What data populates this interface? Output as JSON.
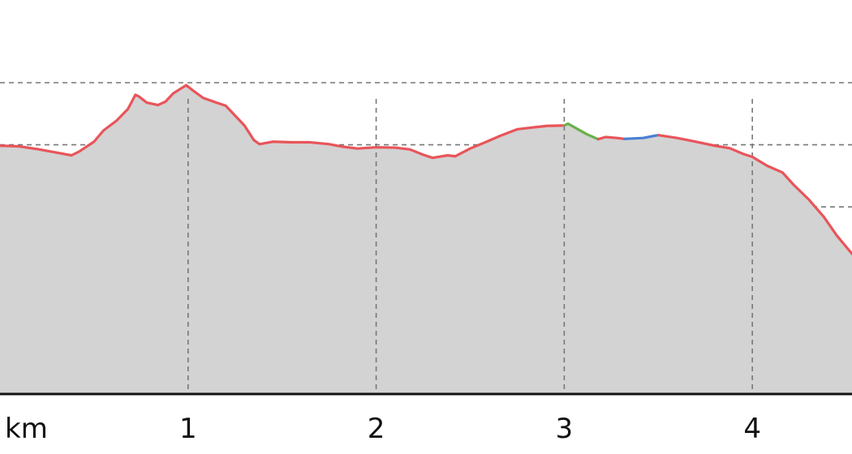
{
  "chart_data": {
    "type": "area",
    "title": "",
    "xlabel": "",
    "ylabel": "",
    "x_unit_label": "km",
    "x_ticks": [
      1,
      2,
      3,
      4
    ],
    "xlim": [
      0,
      4.53
    ],
    "ylim": [
      0,
      100
    ],
    "y_grid_levels": [
      20,
      40,
      60,
      80,
      100
    ],
    "grid": true,
    "colors": {
      "fill": "#d3d3d3",
      "line": "#e8555a",
      "grid": "#777777",
      "axis": "#111111",
      "segment_green": "#6ab04c",
      "segment_blue": "#4a7fd4"
    },
    "series": [
      {
        "color": "#e8555a",
        "points": [
          [
            0.0,
            79.7
          ],
          [
            0.1,
            79.5
          ],
          [
            0.2,
            78.6
          ],
          [
            0.3,
            77.5
          ],
          [
            0.38,
            76.6
          ],
          [
            0.42,
            77.8
          ],
          [
            0.5,
            81.0
          ],
          [
            0.55,
            84.6
          ],
          [
            0.62,
            87.8
          ],
          [
            0.68,
            91.5
          ],
          [
            0.72,
            96.1
          ],
          [
            0.74,
            95.5
          ],
          [
            0.78,
            93.6
          ],
          [
            0.84,
            92.8
          ],
          [
            0.88,
            93.9
          ],
          [
            0.92,
            96.5
          ],
          [
            0.99,
            99.2
          ],
          [
            1.03,
            97.3
          ],
          [
            1.08,
            95.1
          ],
          [
            1.15,
            93.6
          ],
          [
            1.2,
            92.6
          ],
          [
            1.25,
            89.4
          ],
          [
            1.3,
            86.2
          ],
          [
            1.35,
            81.5
          ],
          [
            1.38,
            80.2
          ],
          [
            1.45,
            81.0
          ],
          [
            1.55,
            80.8
          ],
          [
            1.65,
            80.8
          ],
          [
            1.75,
            80.2
          ],
          [
            1.82,
            79.4
          ],
          [
            1.9,
            78.8
          ],
          [
            2.0,
            79.2
          ],
          [
            2.1,
            79.1
          ],
          [
            2.18,
            78.5
          ],
          [
            2.25,
            76.8
          ],
          [
            2.3,
            75.8
          ],
          [
            2.38,
            76.6
          ],
          [
            2.42,
            76.3
          ],
          [
            2.5,
            78.8
          ],
          [
            2.58,
            80.8
          ],
          [
            2.66,
            82.9
          ],
          [
            2.75,
            85.0
          ],
          [
            2.85,
            85.7
          ],
          [
            2.91,
            86.1
          ],
          [
            2.98,
            86.2
          ],
          [
            3.0,
            86.2
          ]
        ]
      },
      {
        "color": "#6ab04c",
        "points": [
          [
            3.0,
            86.2
          ],
          [
            3.02,
            86.8
          ],
          [
            3.12,
            83.4
          ],
          [
            3.18,
            81.8
          ]
        ]
      },
      {
        "color": "#e8555a",
        "points": [
          [
            3.18,
            81.8
          ],
          [
            3.22,
            82.5
          ],
          [
            3.28,
            82.2
          ],
          [
            3.32,
            81.9
          ]
        ]
      },
      {
        "color": "#4a7fd4",
        "points": [
          [
            3.32,
            81.9
          ],
          [
            3.42,
            82.2
          ],
          [
            3.48,
            82.9
          ],
          [
            3.5,
            83.1
          ]
        ]
      },
      {
        "color": "#e8555a",
        "points": [
          [
            3.5,
            83.1
          ],
          [
            3.6,
            82.2
          ],
          [
            3.7,
            81.0
          ],
          [
            3.8,
            79.7
          ],
          [
            3.88,
            78.9
          ],
          [
            3.95,
            77.1
          ],
          [
            4.0,
            76.1
          ],
          [
            4.08,
            73.2
          ],
          [
            4.16,
            71.1
          ],
          [
            4.22,
            67.1
          ],
          [
            4.3,
            62.4
          ],
          [
            4.38,
            56.8
          ],
          [
            4.45,
            50.7
          ],
          [
            4.53,
            44.9
          ]
        ]
      }
    ]
  }
}
